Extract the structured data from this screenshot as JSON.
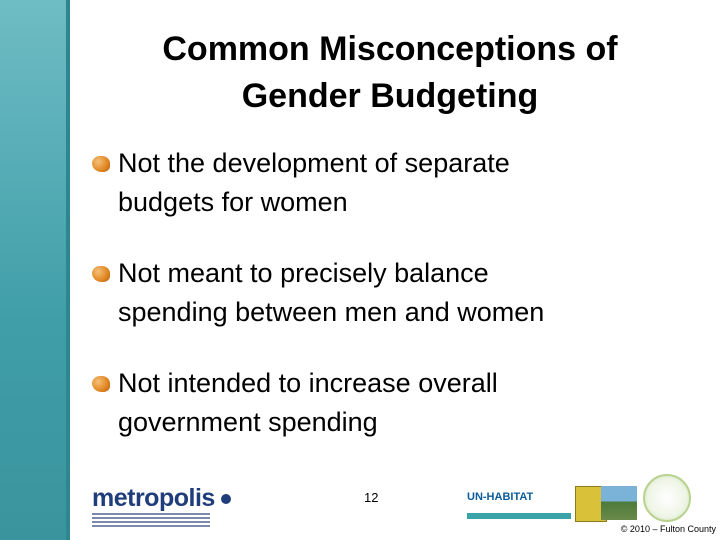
{
  "slide": {
    "title_lines": [
      "Common Misconceptions of",
      "Gender Budgeting"
    ],
    "bullets": [
      {
        "lines": [
          "Not the development of separate",
          "budgets for women"
        ]
      },
      {
        "lines": [
          "Not meant to precisely balance",
          "spending between men and women"
        ]
      },
      {
        "lines": [
          "Not intended to increase overall",
          "government spending"
        ]
      }
    ],
    "page_number": "12",
    "copyright": "© 2010 – Fulton County"
  },
  "logos": {
    "metropolis_name": "metropolis",
    "unhabitat_name": "UN-HABITAT"
  },
  "colors": {
    "left_band": "#3f9ea8",
    "bullet": "#e38a26",
    "metropolis": "#1f3d7a"
  }
}
